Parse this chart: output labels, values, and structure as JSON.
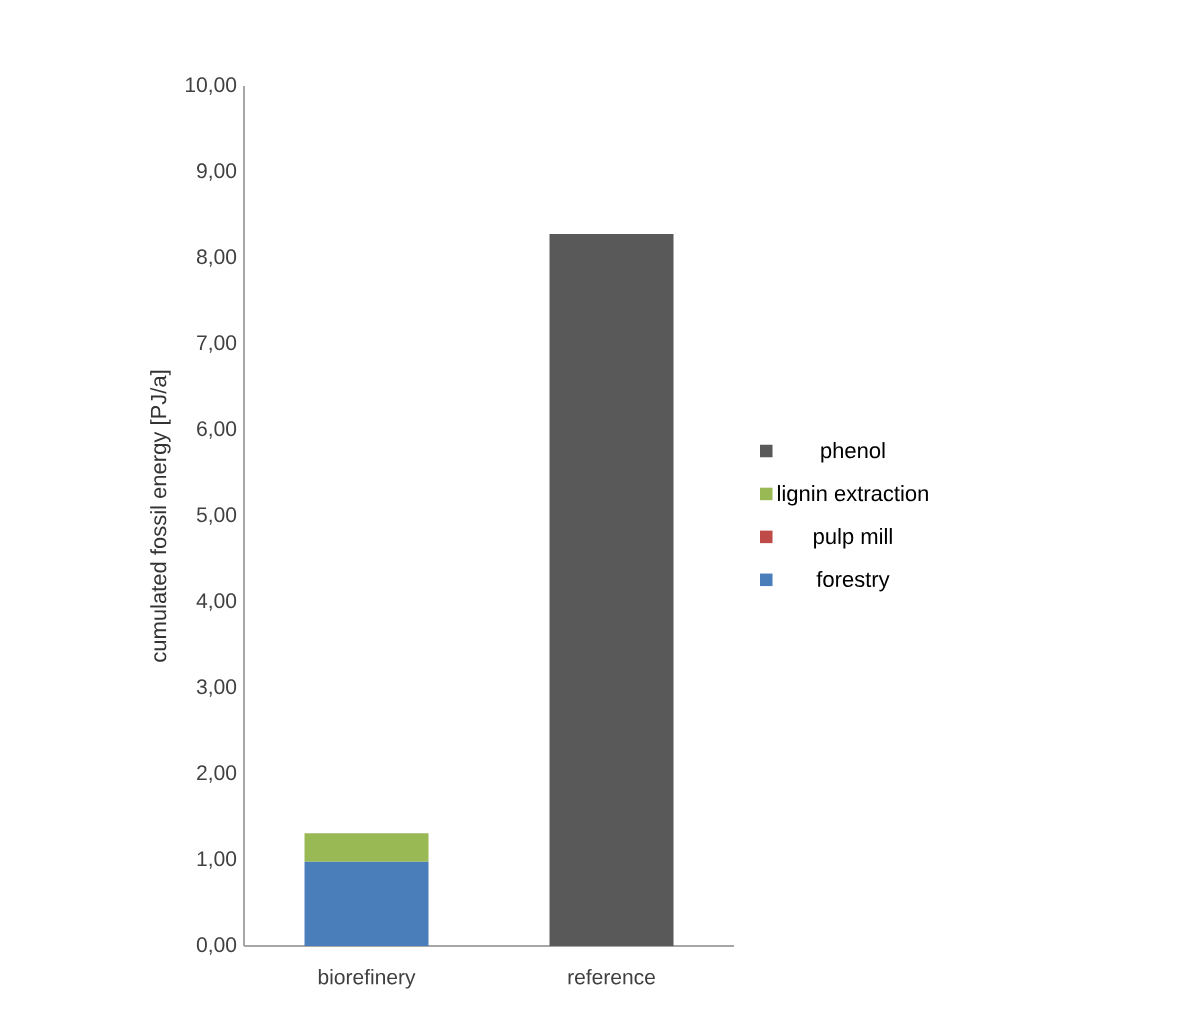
{
  "chart_data": {
    "type": "bar",
    "stacked": true,
    "ylabel": "cumulated fossil energy [PJ/a]",
    "categories": [
      "biorefinery",
      "reference"
    ],
    "series": [
      {
        "name": "forestry",
        "color": "#4a7ebb",
        "values": [
          0.98,
          0
        ]
      },
      {
        "name": "pulp mill",
        "color": "#be4b48",
        "values": [
          0,
          0
        ]
      },
      {
        "name": "lignin extraction",
        "color": "#98b954",
        "values": [
          0.33,
          0
        ]
      },
      {
        "name": "phenol",
        "color": "#595959",
        "values": [
          0,
          8.28
        ]
      }
    ],
    "ylim": [
      0,
      10
    ],
    "yticks": [
      {
        "value": 0,
        "label": "0,00"
      },
      {
        "value": 1,
        "label": "1,00"
      },
      {
        "value": 2,
        "label": "2,00"
      },
      {
        "value": 3,
        "label": "3,00"
      },
      {
        "value": 4,
        "label": "4,00"
      },
      {
        "value": 5,
        "label": "5,00"
      },
      {
        "value": 6,
        "label": "6,00"
      },
      {
        "value": 7,
        "label": "7,00"
      },
      {
        "value": 8,
        "label": "8,00"
      },
      {
        "value": 9,
        "label": "9,00"
      },
      {
        "value": 10,
        "label": "10,00"
      }
    ],
    "grid": false,
    "legend": "right"
  }
}
